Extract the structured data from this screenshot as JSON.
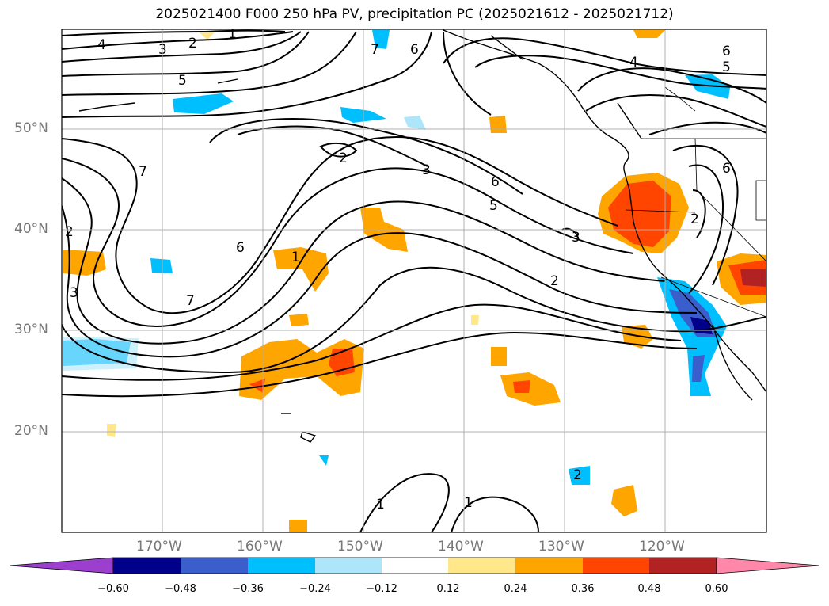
{
  "title": "2025021400 F000 250 hPa PV, precipitation PC (2025021612 - 2025021712)",
  "latitude_labels": [
    "50°N",
    "40°N",
    "30°N",
    "20°N"
  ],
  "longitude_labels": [
    "170°W",
    "160°W",
    "150°W",
    "140°W",
    "130°W",
    "120°W"
  ],
  "colorbar": {
    "ticks": [
      "−0.60",
      "−0.48",
      "−0.36",
      "−0.24",
      "−0.12",
      "0.12",
      "0.24",
      "0.36",
      "0.48",
      "0.60"
    ],
    "colors": [
      "#9c3fcf",
      "#00008b",
      "#3a5fcd",
      "#00bfff",
      "#ade6fa",
      "#ffffff",
      "#ffe78a",
      "#ffa500",
      "#ff4500",
      "#b22222",
      "#ff88aa"
    ]
  },
  "contour_labels": [
    "1",
    "2",
    "2",
    "3",
    "4",
    "5",
    "6",
    "5",
    "6",
    "4",
    "3",
    "2",
    "2",
    "3",
    "6",
    "5",
    "6",
    "2",
    "1",
    "7",
    "7",
    "6",
    "7",
    "3",
    "2",
    "1",
    "1"
  ],
  "colors": {
    "land": "#000000",
    "grid": "#b0b0b0"
  }
}
